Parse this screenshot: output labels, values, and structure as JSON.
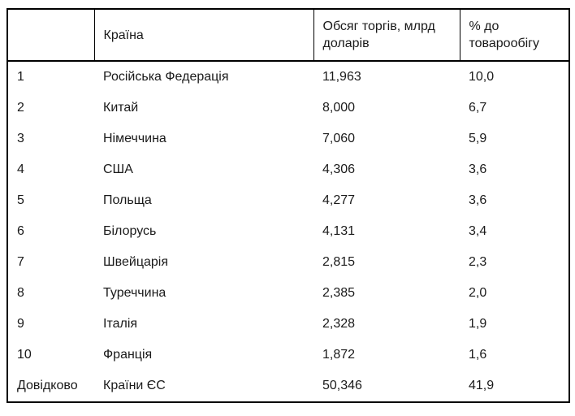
{
  "table": {
    "headers": {
      "rank": "",
      "country": "Країна",
      "volume": "Обсяг торгів, млрд доларів",
      "share": "% до товарообігу"
    },
    "rows": [
      {
        "rank": "1",
        "country": "Російська Федерація",
        "volume": "11,963",
        "share": "10,0"
      },
      {
        "rank": "2",
        "country": "Китай",
        "volume": "8,000",
        "share": "6,7"
      },
      {
        "rank": "3",
        "country": "Німеччина",
        "volume": "7,060",
        "share": "5,9"
      },
      {
        "rank": "4",
        "country": "США",
        "volume": "4,306",
        "share": "3,6"
      },
      {
        "rank": "5",
        "country": "Польща",
        "volume": "4,277",
        "share": "3,6"
      },
      {
        "rank": "6",
        "country": "Білорусь",
        "volume": "4,131",
        "share": "3,4"
      },
      {
        "rank": "7",
        "country": "Швейцарія",
        "volume": "2,815",
        "share": "2,3"
      },
      {
        "rank": "8",
        "country": "Туреччина",
        "volume": "2,385",
        "share": "2,0"
      },
      {
        "rank": "9",
        "country": "Італія",
        "volume": "2,328",
        "share": "1,9"
      },
      {
        "rank": "10",
        "country": "Франція",
        "volume": "1,872",
        "share": "1,6"
      },
      {
        "rank": "Довідково",
        "country": "Країни ЄС",
        "volume": "50,346",
        "share": "41,9"
      }
    ],
    "colors": {
      "border": "#000000",
      "text": "#1a1a1a",
      "background": "#ffffff"
    }
  }
}
